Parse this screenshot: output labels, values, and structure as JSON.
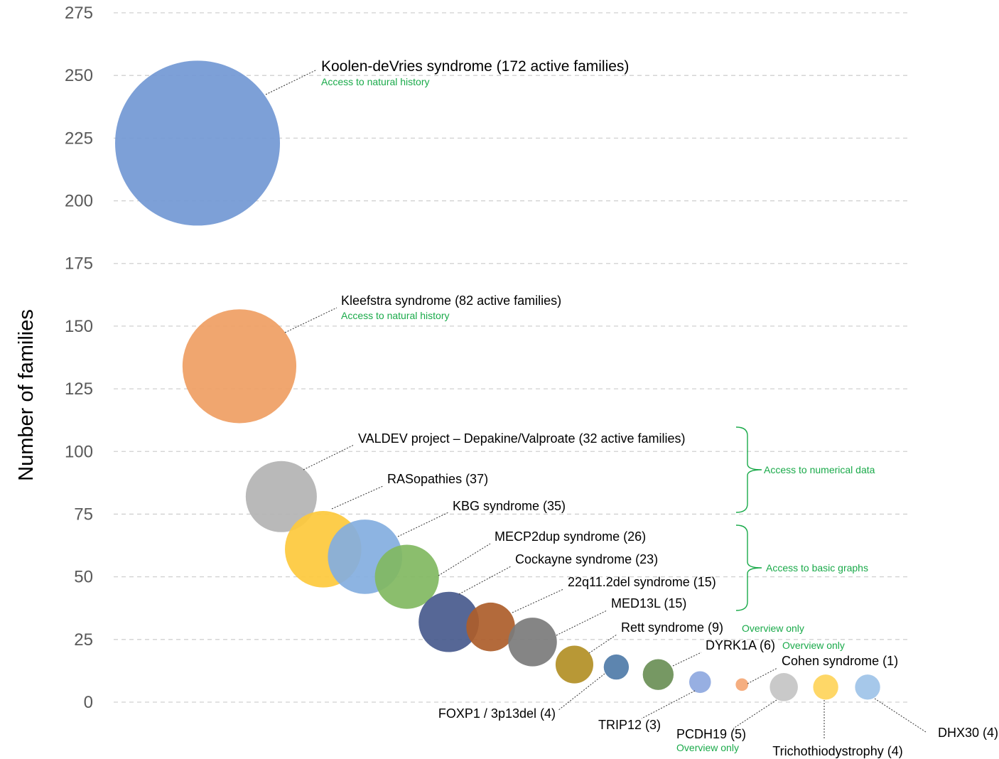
{
  "chart_data": {
    "type": "bubble",
    "ylabel": "Number of families",
    "ylim": [
      0,
      275
    ],
    "y_ticks": [
      0,
      25,
      50,
      75,
      100,
      125,
      150,
      175,
      200,
      225,
      250,
      275
    ],
    "grid": true,
    "series": [
      {
        "name": "Koolen-deVries syndrome (172 active families)",
        "x": 1,
        "y": 223,
        "size": 172,
        "color": "#7298d4",
        "note": "Access to natural history"
      },
      {
        "name": "Kleefstra syndrome (82 active families)",
        "x": 2,
        "y": 134,
        "size": 82,
        "color": "#ef9e63",
        "note": "Access to natural history"
      },
      {
        "name": "VALDEV project – Depakine/Valproate (32 active families)",
        "x": 3,
        "y": 82,
        "size": 32,
        "color": "#b3b3b3"
      },
      {
        "name": "RASopathies (37)",
        "x": 4,
        "y": 61,
        "size": 37,
        "color": "#fdc93c"
      },
      {
        "name": "KBG syndrome (35)",
        "x": 5,
        "y": 58,
        "size": 35,
        "color": "#83aee0"
      },
      {
        "name": "MECP2dup syndrome (26)",
        "x": 6,
        "y": 50,
        "size": 26,
        "color": "#81b861"
      },
      {
        "name": "Cockayne syndrome (23)",
        "x": 7,
        "y": 32,
        "size": 23,
        "color": "#485a8d"
      },
      {
        "name": "22q11.2del syndrome (15)",
        "x": 8,
        "y": 30,
        "size": 15,
        "color": "#ad5d2a"
      },
      {
        "name": "MED13L (15)",
        "x": 9,
        "y": 24,
        "size": 15,
        "color": "#7b7b7b"
      },
      {
        "name": "Rett syndrome (9)",
        "x": 10,
        "y": 15,
        "size": 9,
        "color": "#b28f25",
        "note": "Overview only"
      },
      {
        "name": "FOXP1 / 3p13del (4)",
        "x": 11,
        "y": 14,
        "size": 4,
        "color": "#4f7ba8"
      },
      {
        "name": "DYRK1A (6)",
        "x": 12,
        "y": 11,
        "size": 6,
        "color": "#6a8f56",
        "note": "Overview only"
      },
      {
        "name": "TRIP12 (3)",
        "x": 13,
        "y": 8,
        "size": 3,
        "color": "#8ea8df"
      },
      {
        "name": "Cohen syndrome (1)",
        "x": 14,
        "y": 7,
        "size": 1,
        "color": "#f4a775"
      },
      {
        "name": "PCDH19 (5)",
        "x": 15,
        "y": 6,
        "size": 5,
        "color": "#c4c4c4",
        "note": "Overview only"
      },
      {
        "name": "Trichothiodystrophy (4)",
        "x": 16,
        "y": 6,
        "size": 4,
        "color": "#fed45a"
      },
      {
        "name": "DHX30 (4)",
        "x": 17,
        "y": 6,
        "size": 4,
        "color": "#9ec3e8"
      }
    ],
    "brackets": [
      {
        "label": "Access to numerical data"
      },
      {
        "label": "Access to basic graphs"
      }
    ]
  }
}
